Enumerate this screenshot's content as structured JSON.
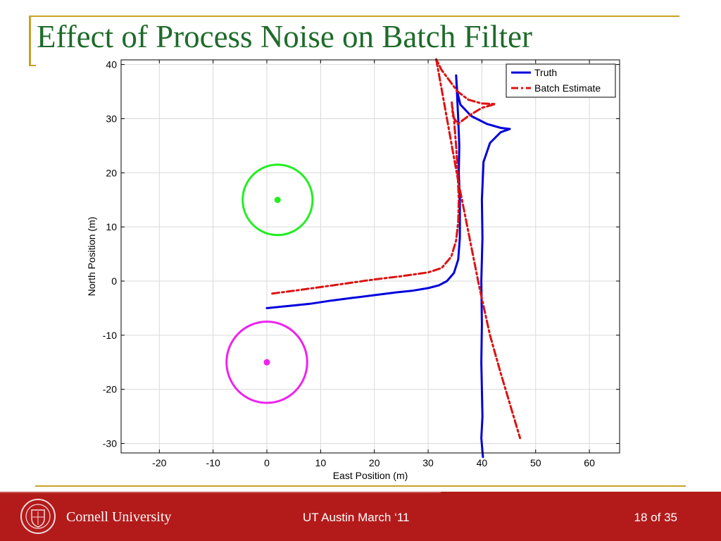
{
  "slide": {
    "title": "Effect of Process Noise on Batch Filter",
    "footer_brand": "Cornell University",
    "footer_center": "UT Austin March ‘11",
    "footer_page": "18 of 35"
  },
  "colors": {
    "title": "#1e6b2a",
    "accent_gold": "#c9a227",
    "footer_red": "#b31b1b"
  },
  "chart_data": {
    "type": "line",
    "xlabel": "East Position (m)",
    "ylabel": "North Position (m)",
    "xlim": [
      -30,
      65
    ],
    "ylim": [
      -32,
      41
    ],
    "xticks": [
      -20,
      -10,
      0,
      10,
      20,
      30,
      40,
      50,
      60
    ],
    "yticks": [
      -30,
      -20,
      -10,
      0,
      10,
      20,
      30,
      40
    ],
    "grid": true,
    "legend_position": "top-right",
    "series": [
      {
        "name": "Truth",
        "color": "#0000dd",
        "style": "solid",
        "x": [
          0,
          3,
          5,
          8,
          12,
          16,
          20,
          24,
          27,
          30,
          32,
          33.5,
          34.8,
          35.6,
          35.9,
          35.9,
          35.7,
          35.8,
          35.6,
          35.4,
          35.2,
          35.4,
          36,
          38,
          41,
          43.5,
          45.2,
          43.5,
          41.5,
          40.3,
          40,
          40.1,
          39.9,
          40,
          39.9,
          40,
          40.1,
          39.9,
          40.2
        ],
        "y": [
          -5,
          -4.7,
          -4.5,
          -4.2,
          -3.6,
          -3.1,
          -2.6,
          -2.1,
          -1.8,
          -1.3,
          -0.8,
          0,
          1.5,
          4,
          8,
          15,
          20,
          25,
          30,
          34,
          38,
          35,
          32.6,
          30.5,
          29,
          28.3,
          28.1,
          27.5,
          25.5,
          22,
          15,
          8,
          0,
          -8,
          -15,
          -20,
          -25,
          -29,
          -32.5
        ]
      },
      {
        "name": "Batch Estimate",
        "color": "#dd1111",
        "style": "dashdot",
        "x": [
          1,
          5,
          10,
          15,
          20,
          25,
          30,
          32.5,
          34.3,
          35.2,
          35.6,
          35.7,
          35.5,
          35.2,
          34.8,
          34.4,
          34.6,
          35.5,
          37.5,
          40,
          42.5,
          40,
          37.5,
          35.5,
          34,
          32.5,
          31.5,
          33.5,
          35.5,
          37.5,
          39.5,
          41.5,
          43.5,
          45,
          46.2,
          47.1
        ],
        "y": [
          -2.3,
          -1.8,
          -1.1,
          -0.4,
          0.3,
          0.9,
          1.6,
          2.4,
          4.5,
          7.5,
          11,
          15,
          20,
          25,
          30,
          33,
          30.5,
          29,
          30.5,
          32,
          32.7,
          32.8,
          33.5,
          35,
          37,
          39,
          41,
          30,
          19,
          9,
          -1,
          -10,
          -17,
          -22,
          -26,
          -29
        ]
      }
    ],
    "circles": [
      {
        "center": [
          2,
          15
        ],
        "radius": 6.5,
        "color": "#22ee22"
      },
      {
        "center": [
          0,
          -15
        ],
        "radius": 7.5,
        "color": "#ee22ee"
      }
    ]
  }
}
